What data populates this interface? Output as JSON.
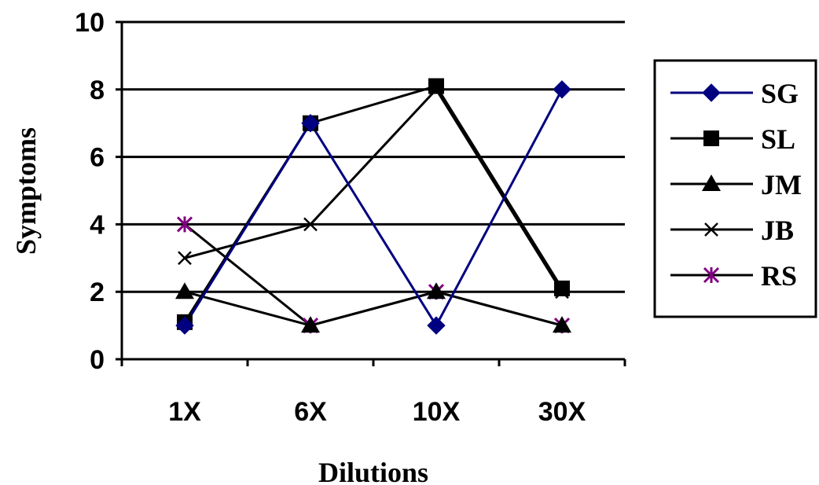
{
  "chart_data": {
    "type": "line",
    "xlabel": "Dilutions",
    "ylabel": "Symptoms",
    "categories": [
      "1X",
      "6X",
      "10X",
      "30X"
    ],
    "ylim": [
      0,
      10
    ],
    "yticks": [
      0,
      2,
      4,
      6,
      8,
      10
    ],
    "grid": "horizontal",
    "legend_position": "right",
    "series": [
      {
        "name": "SG",
        "values": [
          1,
          7,
          1,
          8
        ],
        "color": "#000080",
        "marker": "diamond"
      },
      {
        "name": "SL",
        "values": [
          1.1,
          7,
          8.1,
          2.1
        ],
        "color": "#000000",
        "marker": "square"
      },
      {
        "name": "JM",
        "values": [
          2,
          1,
          2,
          1
        ],
        "color": "#000000",
        "marker": "triangle"
      },
      {
        "name": "JB",
        "values": [
          3,
          4,
          8,
          2
        ],
        "color": "#000000",
        "marker": "x"
      },
      {
        "name": "RS",
        "values": [
          4,
          1,
          2,
          1
        ],
        "color": "#000000",
        "line_color": "#000000",
        "marker_color": "#800080",
        "marker": "star"
      }
    ]
  }
}
